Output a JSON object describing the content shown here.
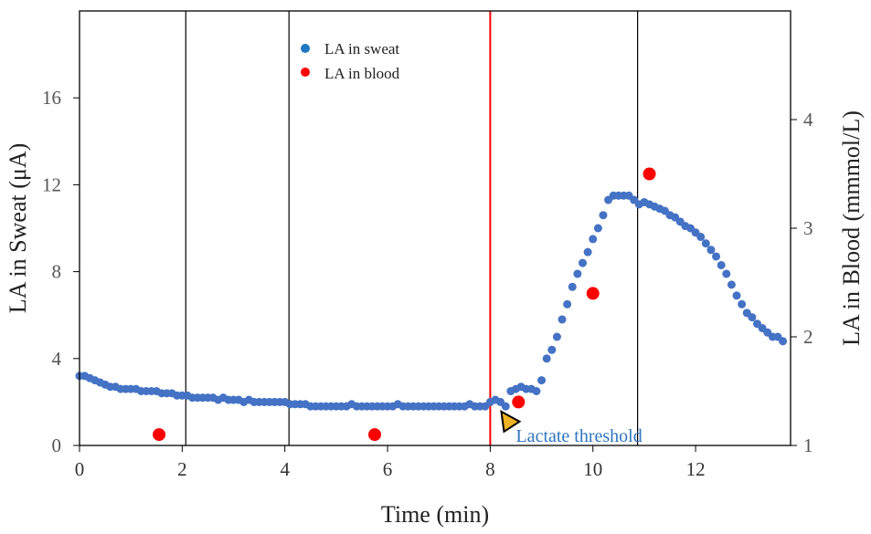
{
  "chart_data": {
    "type": "scatter",
    "xlabel": "Time (min)",
    "ylabel_left": "LA in Sweat (μA)",
    "ylabel_right": "LA in Blood (mmmol/L)",
    "xlim": [
      0,
      13.85
    ],
    "ylim_left": [
      0,
      20
    ],
    "ylim_right": [
      1,
      5
    ],
    "x_ticks": [
      0,
      2,
      4,
      6,
      8,
      10,
      12
    ],
    "y_left_ticks": [
      0,
      4,
      8,
      12,
      16
    ],
    "y_right_ticks": [
      1,
      2,
      3,
      4
    ],
    "grid": false,
    "legend_position": "top-center",
    "vertical_lines": [
      {
        "x": 2.07,
        "color": "#000000"
      },
      {
        "x": 4.08,
        "color": "#000000"
      },
      {
        "x": 8.0,
        "color": "#ff0000"
      },
      {
        "x": 10.87,
        "color": "#000000"
      }
    ],
    "annotation": {
      "text": "Lactate threshold",
      "x": 8.5,
      "y_left": 1.1,
      "color": "#2e75c0",
      "marker_color": "#f0b323"
    },
    "series": [
      {
        "name": "LA in sweat",
        "axis": "left",
        "color": "#4472c4",
        "x": [
          0.0,
          0.1,
          0.2,
          0.3,
          0.4,
          0.5,
          0.6,
          0.7,
          0.8,
          0.9,
          1.0,
          1.1,
          1.2,
          1.3,
          1.4,
          1.5,
          1.6,
          1.7,
          1.8,
          1.9,
          2.0,
          2.1,
          2.2,
          2.3,
          2.4,
          2.5,
          2.6,
          2.7,
          2.8,
          2.9,
          3.0,
          3.1,
          3.2,
          3.3,
          3.4,
          3.5,
          3.6,
          3.7,
          3.8,
          3.9,
          4.0,
          4.1,
          4.2,
          4.3,
          4.4,
          4.5,
          4.6,
          4.7,
          4.8,
          4.9,
          5.0,
          5.1,
          5.2,
          5.3,
          5.4,
          5.5,
          5.6,
          5.7,
          5.8,
          5.9,
          6.0,
          6.1,
          6.2,
          6.3,
          6.4,
          6.5,
          6.6,
          6.7,
          6.8,
          6.9,
          7.0,
          7.1,
          7.2,
          7.3,
          7.4,
          7.5,
          7.6,
          7.7,
          7.8,
          7.9,
          8.0,
          8.1,
          8.2,
          8.3,
          8.4,
          8.5,
          8.6,
          8.7,
          8.8,
          8.9,
          9.0,
          9.1,
          9.2,
          9.3,
          9.4,
          9.5,
          9.6,
          9.7,
          9.8,
          9.9,
          10.0,
          10.1,
          10.2,
          10.3,
          10.4,
          10.5,
          10.6,
          10.7,
          10.8,
          10.9,
          11.0,
          11.1,
          11.2,
          11.3,
          11.4,
          11.5,
          11.6,
          11.7,
          11.8,
          11.9,
          12.0,
          12.1,
          12.2,
          12.3,
          12.4,
          12.5,
          12.6,
          12.7,
          12.8,
          12.9,
          13.0,
          13.1,
          13.2,
          13.3,
          13.4,
          13.5,
          13.6,
          13.7
        ],
        "y": [
          3.2,
          3.2,
          3.1,
          3.0,
          2.9,
          2.8,
          2.7,
          2.7,
          2.6,
          2.6,
          2.6,
          2.6,
          2.5,
          2.5,
          2.5,
          2.5,
          2.4,
          2.4,
          2.4,
          2.3,
          2.3,
          2.3,
          2.2,
          2.2,
          2.2,
          2.2,
          2.2,
          2.1,
          2.2,
          2.1,
          2.1,
          2.1,
          2.0,
          2.1,
          2.0,
          2.0,
          2.0,
          2.0,
          2.0,
          2.0,
          2.0,
          1.9,
          1.9,
          1.9,
          1.9,
          1.8,
          1.8,
          1.8,
          1.8,
          1.8,
          1.8,
          1.8,
          1.8,
          1.9,
          1.8,
          1.8,
          1.8,
          1.8,
          1.8,
          1.8,
          1.8,
          1.8,
          1.9,
          1.8,
          1.8,
          1.8,
          1.8,
          1.8,
          1.8,
          1.8,
          1.8,
          1.8,
          1.8,
          1.8,
          1.8,
          1.8,
          1.9,
          1.8,
          1.8,
          1.8,
          2.0,
          2.1,
          2.0,
          1.8,
          2.5,
          2.6,
          2.7,
          2.6,
          2.6,
          2.5,
          3.0,
          4.0,
          4.4,
          5.0,
          5.8,
          6.5,
          7.3,
          7.9,
          8.4,
          8.9,
          9.5,
          10.0,
          10.6,
          11.3,
          11.5,
          11.5,
          11.5,
          11.5,
          11.3,
          11.1,
          11.2,
          11.1,
          11.0,
          10.9,
          10.8,
          10.6,
          10.5,
          10.3,
          10.1,
          10.0,
          9.8,
          9.6,
          9.3,
          9.0,
          8.7,
          8.3,
          7.9,
          7.4,
          6.9,
          6.5,
          6.1,
          5.9,
          5.6,
          5.4,
          5.2,
          5.0,
          5.0,
          4.8
        ]
      },
      {
        "name": "LA in blood",
        "axis": "right",
        "color": "#ff0000",
        "x": [
          1.55,
          5.75,
          8.55,
          10.0,
          11.1
        ],
        "y": [
          1.1,
          1.1,
          1.4,
          2.4,
          3.5
        ]
      }
    ]
  }
}
